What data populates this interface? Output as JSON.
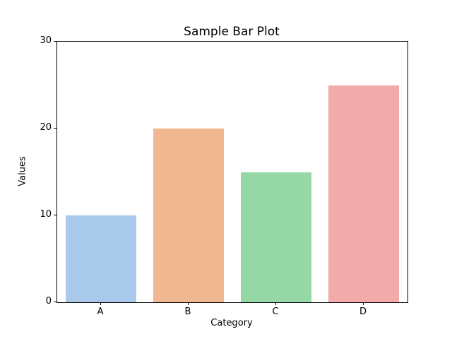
{
  "chart_data": {
    "type": "bar",
    "title": "Sample Bar Plot",
    "xlabel": "Category",
    "ylabel": "Values",
    "categories": [
      "A",
      "B",
      "C",
      "D"
    ],
    "values": [
      10,
      20,
      15,
      25
    ],
    "bar_colors": [
      "#a9c9ea",
      "#f0b790",
      "#95d8a5",
      "#f2aaaa"
    ],
    "ylim": [
      0,
      30
    ],
    "yticks": [
      0,
      10,
      20,
      30
    ],
    "grid": false,
    "legend_position": "none",
    "background_color": "#ffffff",
    "spine_color": "#000000"
  }
}
